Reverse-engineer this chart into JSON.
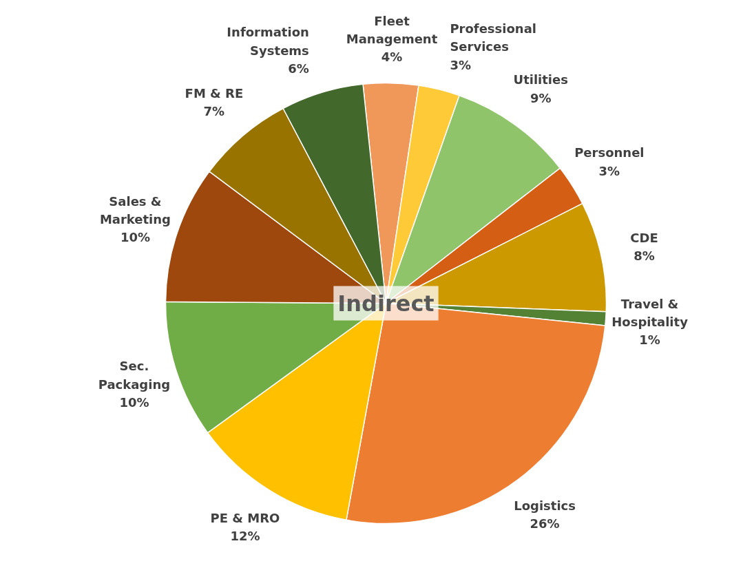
{
  "chart_data": {
    "type": "pie",
    "title": "Indirect",
    "categories": [
      "Fleet Management",
      "Professional Services",
      "Utilities",
      "Personnel",
      "CDE",
      "Travel & Hospitality",
      "Logistics",
      "PE & MRO",
      "Sec. Packaging",
      "Sales & Marketing",
      "FM & RE",
      "Information Systems"
    ],
    "values": [
      4,
      3,
      9,
      3,
      8,
      1,
      26,
      12,
      10,
      10,
      7,
      6
    ],
    "value_labels": [
      "4%",
      "3%",
      "9%",
      "3%",
      "8%",
      "1%",
      "26%",
      "12%",
      "10%",
      "10%",
      "7%",
      "6%"
    ],
    "colors": [
      "#f0975a",
      "#ffca38",
      "#8fc46a",
      "#d45f14",
      "#cc9900",
      "#548235",
      "#ed7d31",
      "#ffc000",
      "#70ad47",
      "#9e480e",
      "#997300",
      "#43682b"
    ]
  }
}
